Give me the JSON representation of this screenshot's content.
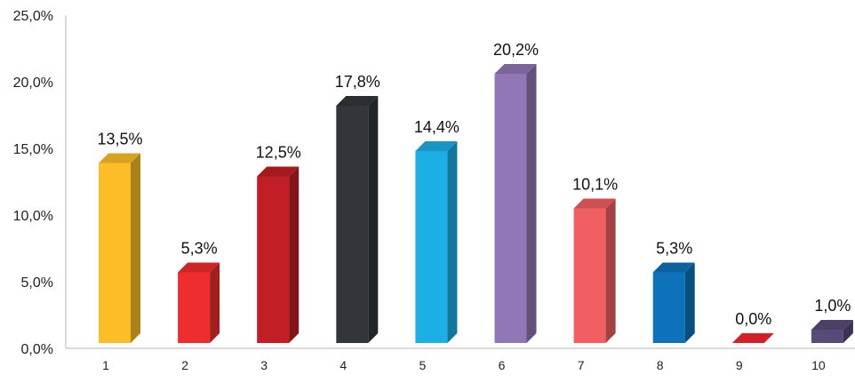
{
  "chart_data": {
    "type": "bar",
    "categories": [
      "1",
      "2",
      "3",
      "4",
      "5",
      "6",
      "7",
      "8",
      "9",
      "10"
    ],
    "values": [
      13.5,
      5.3,
      12.5,
      17.8,
      14.4,
      20.2,
      10.1,
      5.3,
      0.0,
      1.0
    ],
    "data_labels": [
      "13,5%",
      "5,3%",
      "12,5%",
      "17,8%",
      "14,4%",
      "20,2%",
      "10,1%",
      "5,3%",
      "0,0%",
      "1,0%"
    ],
    "ylim": [
      0,
      25
    ],
    "yticks": [
      0,
      5,
      10,
      15,
      20,
      25
    ],
    "ytick_labels": [
      "0,0%",
      "5,0%",
      "10,0%",
      "15,0%",
      "20,0%",
      "25,0%"
    ],
    "grid": false,
    "legend": "none",
    "colors": [
      "#FDBD27",
      "#EE2D2F",
      "#C11F25",
      "#32363A",
      "#1CAFE6",
      "#9177B5",
      "#F15F62",
      "#0E72BB",
      "#D32028",
      "#584B79"
    ],
    "style": "3d-bar"
  }
}
